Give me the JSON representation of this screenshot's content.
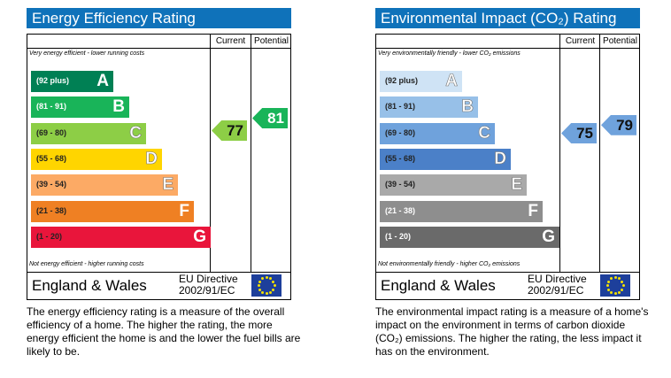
{
  "energy": {
    "title": "Energy Efficiency Rating",
    "current_label": "Current",
    "potential_label": "Potential",
    "top_note": "Very energy efficient - lower running costs",
    "bottom_note": "Not energy efficient - higher running costs",
    "region": "England & Wales",
    "directive_line1": "EU Directive",
    "directive_line2": "2002/91/EC",
    "bands": [
      {
        "range": "(92 plus)",
        "letter": "A",
        "color": "#008054",
        "text": "#fff"
      },
      {
        "range": "(81 - 91)",
        "letter": "B",
        "color": "#19b459",
        "text": "#fff"
      },
      {
        "range": "(69 - 80)",
        "letter": "C",
        "color": "#8dce46",
        "text": "#222"
      },
      {
        "range": "(55 - 68)",
        "letter": "D",
        "color": "#ffd500",
        "text": "#222"
      },
      {
        "range": "(39 - 54)",
        "letter": "E",
        "color": "#fcaa65",
        "text": "#222"
      },
      {
        "range": "(21 - 38)",
        "letter": "F",
        "color": "#ef8023",
        "text": "#222"
      },
      {
        "range": "(1 - 20)",
        "letter": "G",
        "color": "#e9153b",
        "text": "#222"
      }
    ],
    "current": {
      "value": "77",
      "color": "#8dce46",
      "text": "#111"
    },
    "potential": {
      "value": "81",
      "color": "#19b459",
      "text": "#fff"
    },
    "description": "The energy efficiency rating is a measure of the overall efficiency of a home. The higher the rating, the more energy efficient the home is and the lower the fuel bills are likely to be."
  },
  "environment": {
    "title": "Environmental Impact (CO₂) Rating",
    "current_label": "Current",
    "potential_label": "Potential",
    "top_note": "Very environmentally friendly - lower CO₂ emissions",
    "bottom_note": "Not environmentally friendly - higher CO₂ emissions",
    "region": "England & Wales",
    "directive_line1": "EU Directive",
    "directive_line2": "2002/91/EC",
    "bands": [
      {
        "range": "(92 plus)",
        "letter": "A",
        "color": "#cfe3f5",
        "text": "#222"
      },
      {
        "range": "(81 - 91)",
        "letter": "B",
        "color": "#97c0e8",
        "text": "#222"
      },
      {
        "range": "(69 - 80)",
        "letter": "C",
        "color": "#6fa2dc",
        "text": "#222"
      },
      {
        "range": "(55 - 68)",
        "letter": "D",
        "color": "#4b80c8",
        "text": "#222"
      },
      {
        "range": "(39 - 54)",
        "letter": "E",
        "color": "#a9a9a9",
        "text": "#222"
      },
      {
        "range": "(21 - 38)",
        "letter": "F",
        "color": "#8e8e8e",
        "text": "#fff"
      },
      {
        "range": "(1 - 20)",
        "letter": "G",
        "color": "#6a6a6a",
        "text": "#fff"
      }
    ],
    "current": {
      "value": "75",
      "color": "#6fa2dc",
      "text": "#111"
    },
    "potential": {
      "value": "79",
      "color": "#6fa2dc",
      "text": "#111"
    },
    "description": "The environmental impact rating is a measure of a home's impact on the environment in terms of carbon dioxide (CO₂) emissions. The higher the rating, the less impact it has on the environment."
  }
}
